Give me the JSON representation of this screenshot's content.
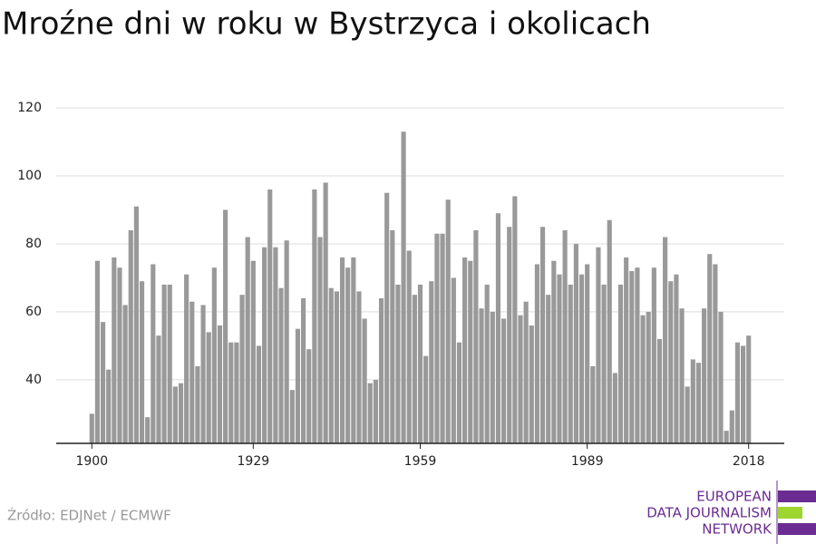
{
  "chart_data": {
    "type": "bar",
    "title": "Mroźne dni w roku w Bystrzyca i okolicach",
    "x": [
      1900,
      1901,
      1902,
      1903,
      1904,
      1905,
      1906,
      1907,
      1908,
      1909,
      1910,
      1911,
      1912,
      1913,
      1914,
      1915,
      1916,
      1917,
      1918,
      1919,
      1920,
      1921,
      1922,
      1923,
      1924,
      1925,
      1926,
      1927,
      1928,
      1929,
      1930,
      1931,
      1932,
      1933,
      1934,
      1935,
      1936,
      1937,
      1938,
      1939,
      1940,
      1941,
      1942,
      1943,
      1944,
      1945,
      1946,
      1947,
      1948,
      1949,
      1950,
      1951,
      1952,
      1953,
      1954,
      1955,
      1956,
      1957,
      1958,
      1959,
      1960,
      1961,
      1962,
      1963,
      1964,
      1965,
      1966,
      1967,
      1968,
      1969,
      1970,
      1971,
      1972,
      1973,
      1974,
      1975,
      1976,
      1977,
      1978,
      1979,
      1980,
      1981,
      1982,
      1983,
      1984,
      1985,
      1986,
      1987,
      1988,
      1989,
      1990,
      1991,
      1992,
      1993,
      1994,
      1995,
      1996,
      1997,
      1998,
      1999,
      2000,
      2001,
      2002,
      2003,
      2004,
      2005,
      2006,
      2007,
      2008,
      2009,
      2010,
      2011,
      2012,
      2013,
      2014,
      2015,
      2016,
      2017,
      2018
    ],
    "values": [
      30,
      75,
      57,
      43,
      76,
      73,
      62,
      84,
      91,
      69,
      29,
      74,
      53,
      68,
      68,
      38,
      39,
      71,
      63,
      44,
      62,
      54,
      73,
      56,
      90,
      51,
      51,
      65,
      82,
      75,
      50,
      79,
      96,
      79,
      67,
      81,
      37,
      55,
      64,
      49,
      96,
      82,
      98,
      67,
      66,
      76,
      73,
      76,
      66,
      58,
      39,
      40,
      64,
      95,
      84,
      68,
      113,
      78,
      65,
      68,
      47,
      69,
      83,
      83,
      93,
      70,
      51,
      76,
      75,
      84,
      61,
      68,
      60,
      89,
      58,
      85,
      94,
      59,
      63,
      56,
      74,
      85,
      65,
      75,
      71,
      84,
      68,
      80,
      71,
      74,
      44,
      79,
      68,
      87,
      42,
      68,
      76,
      72,
      73,
      59,
      60,
      73,
      52,
      82,
      69,
      71,
      61,
      38,
      46,
      45,
      61,
      77,
      74,
      60,
      25,
      31,
      51,
      50,
      53
    ],
    "color": "#999999",
    "xlim": [
      1893.6,
      2024.4
    ],
    "xticks": [
      1900,
      1929,
      1959,
      1989,
      2018
    ],
    "ylim": [
      21.3,
      120
    ],
    "yticks": [
      40,
      60,
      80,
      100,
      120
    ],
    "grid": true,
    "source": "Źródło: EDJNet / ECMWF",
    "logo": [
      "EUROPEAN",
      "DATA JOURNALISM",
      "NETWORK"
    ]
  }
}
